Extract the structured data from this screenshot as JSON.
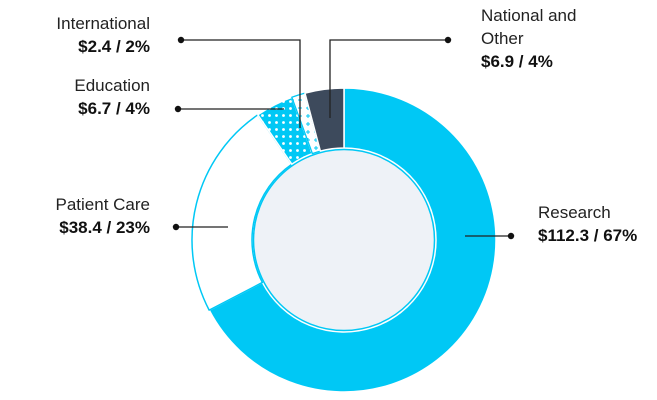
{
  "chart_data": {
    "type": "pie",
    "variant": "donut",
    "title": "",
    "slices": [
      {
        "name": "Research",
        "value": 112.3,
        "percent": 67,
        "value_label": "$112.3 / 67%",
        "color": "#00c8f5",
        "pattern": "solid"
      },
      {
        "name": "Patient Care",
        "value": 38.4,
        "percent": 23,
        "value_label": "$38.4 / 23%",
        "color": "#ffffff",
        "pattern": "outline"
      },
      {
        "name": "Education",
        "value": 6.7,
        "percent": 4,
        "value_label": "$6.7 / 4%",
        "color": "#00c8f5",
        "pattern": "dots"
      },
      {
        "name": "International",
        "value": 2.4,
        "percent": 2,
        "value_label": "$2.4 / 2%",
        "color": "#00c8f5",
        "pattern": "crosses"
      },
      {
        "name": "National and Other",
        "value": 6.9,
        "percent": 4,
        "value_label": "$6.9 / 4%",
        "color": "#3d4a5c",
        "pattern": "solid"
      }
    ],
    "colors": {
      "accent": "#00c8f5",
      "dark": "#3d4a5c",
      "center": "#eef2f7"
    }
  }
}
